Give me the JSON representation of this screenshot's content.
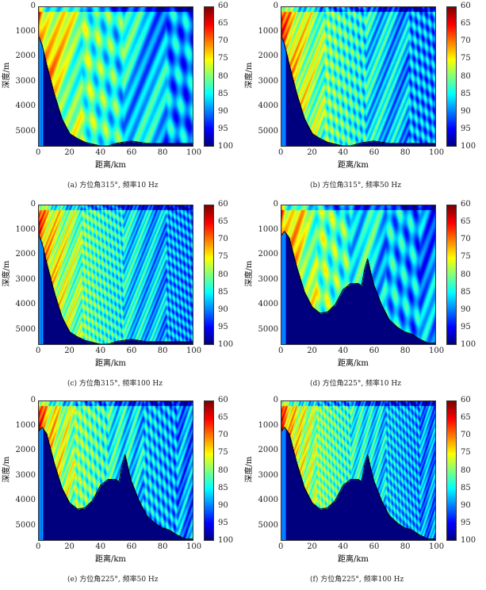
{
  "chart_data": [
    {
      "id": "a",
      "type": "heatmap",
      "caption": "(a) 方位角315°, 频率10 Hz",
      "azimuth": 315,
      "frequency_hz": 10,
      "xlabel": "距离/km",
      "ylabel": "深度/m",
      "xlim": [
        0,
        100
      ],
      "ylim": [
        5600,
        0
      ],
      "xticks": [
        "0",
        "20",
        "40",
        "60",
        "80",
        "100"
      ],
      "yticks": [
        "0",
        "1000",
        "2000",
        "3000",
        "4000",
        "5000"
      ],
      "colorbar": {
        "range": [
          60,
          100
        ],
        "ticks": [
          "60",
          "65",
          "70",
          "75",
          "80",
          "85",
          "90",
          "95",
          "100"
        ],
        "colormap": "jet",
        "reversed": true
      }
    },
    {
      "id": "b",
      "type": "heatmap",
      "caption": "(b) 方位角315°, 频率50 Hz",
      "azimuth": 315,
      "frequency_hz": 50,
      "xlabel": "距离/km",
      "ylabel": "深度/m",
      "xlim": [
        0,
        100
      ],
      "ylim": [
        5600,
        0
      ],
      "xticks": [
        "0",
        "20",
        "40",
        "60",
        "80",
        "100"
      ],
      "yticks": [
        "0",
        "1000",
        "2000",
        "3000",
        "4000",
        "5000"
      ],
      "colorbar": {
        "range": [
          60,
          100
        ],
        "ticks": [
          "60",
          "65",
          "70",
          "75",
          "80",
          "85",
          "90",
          "95",
          "100"
        ],
        "colormap": "jet",
        "reversed": true
      }
    },
    {
      "id": "c",
      "type": "heatmap",
      "caption": "(c) 方位角315°, 频率100 Hz",
      "azimuth": 315,
      "frequency_hz": 100,
      "xlabel": "距离/km",
      "ylabel": "深度/m",
      "xlim": [
        0,
        100
      ],
      "ylim": [
        5600,
        0
      ],
      "xticks": [
        "0",
        "20",
        "40",
        "60",
        "80",
        "100"
      ],
      "yticks": [
        "0",
        "1000",
        "2000",
        "3000",
        "4000",
        "5000"
      ],
      "colorbar": {
        "range": [
          60,
          100
        ],
        "ticks": [
          "60",
          "65",
          "70",
          "75",
          "80",
          "85",
          "90",
          "95",
          "100"
        ],
        "colormap": "jet",
        "reversed": true
      }
    },
    {
      "id": "d",
      "type": "heatmap",
      "caption": "(d) 方位角225°, 频率10 Hz",
      "azimuth": 225,
      "frequency_hz": 10,
      "xlabel": "距离/km",
      "ylabel": "深度/m",
      "xlim": [
        0,
        100
      ],
      "ylim": [
        5600,
        0
      ],
      "xticks": [
        "0",
        "20",
        "40",
        "60",
        "80",
        "100"
      ],
      "yticks": [
        "0",
        "1000",
        "2000",
        "3000",
        "4000",
        "5000"
      ],
      "colorbar": {
        "range": [
          60,
          100
        ],
        "ticks": [
          "60",
          "65",
          "70",
          "75",
          "80",
          "85",
          "90",
          "95",
          "100"
        ],
        "colormap": "jet",
        "reversed": true
      }
    },
    {
      "id": "e",
      "type": "heatmap",
      "caption": "(e) 方位角225°, 频率50 Hz",
      "azimuth": 225,
      "frequency_hz": 50,
      "xlabel": "距离/km",
      "ylabel": "深度/m",
      "xlim": [
        0,
        100
      ],
      "ylim": [
        5600,
        0
      ],
      "xticks": [
        "0",
        "20",
        "40",
        "60",
        "80",
        "100"
      ],
      "yticks": [
        "0",
        "1000",
        "2000",
        "3000",
        "4000",
        "5000"
      ],
      "colorbar": {
        "range": [
          60,
          100
        ],
        "ticks": [
          "60",
          "65",
          "70",
          "75",
          "80",
          "85",
          "90",
          "95",
          "100"
        ],
        "colormap": "jet",
        "reversed": true
      }
    },
    {
      "id": "f",
      "type": "heatmap",
      "caption": "(f) 方位角225°, 频率100 Hz",
      "azimuth": 225,
      "frequency_hz": 100,
      "xlabel": "距离/km",
      "ylabel": "深度/m",
      "xlim": [
        0,
        100
      ],
      "ylim": [
        5600,
        0
      ],
      "xticks": [
        "0",
        "20",
        "40",
        "60",
        "80",
        "100"
      ],
      "yticks": [
        "0",
        "1000",
        "2000",
        "3000",
        "4000",
        "5000"
      ],
      "colorbar": {
        "range": [
          60,
          100
        ],
        "ticks": [
          "60",
          "65",
          "70",
          "75",
          "80",
          "85",
          "90",
          "95",
          "100"
        ],
        "colormap": "jet",
        "reversed": true
      }
    }
  ],
  "bathymetry": {
    "315": [
      [
        0,
        1200
      ],
      [
        2,
        1500
      ],
      [
        5,
        2300
      ],
      [
        10,
        3500
      ],
      [
        15,
        4500
      ],
      [
        20,
        5100
      ],
      [
        25,
        5300
      ],
      [
        30,
        5450
      ],
      [
        40,
        5600
      ],
      [
        45,
        5600
      ],
      [
        50,
        5500
      ],
      [
        60,
        5400
      ],
      [
        70,
        5500
      ],
      [
        100,
        5500
      ]
    ],
    "225": [
      [
        0,
        1200
      ],
      [
        2,
        1050
      ],
      [
        5,
        1300
      ],
      [
        10,
        2500
      ],
      [
        15,
        3500
      ],
      [
        20,
        4100
      ],
      [
        25,
        4350
      ],
      [
        30,
        4300
      ],
      [
        35,
        4000
      ],
      [
        40,
        3400
      ],
      [
        45,
        3150
      ],
      [
        50,
        3150
      ],
      [
        52,
        3250
      ],
      [
        54,
        2600
      ],
      [
        56,
        2150
      ],
      [
        58,
        2700
      ],
      [
        60,
        3200
      ],
      [
        65,
        4000
      ],
      [
        70,
        4600
      ],
      [
        75,
        4900
      ],
      [
        80,
        5100
      ],
      [
        85,
        5200
      ],
      [
        90,
        5400
      ],
      [
        95,
        5550
      ],
      [
        100,
        5550
      ]
    ]
  }
}
